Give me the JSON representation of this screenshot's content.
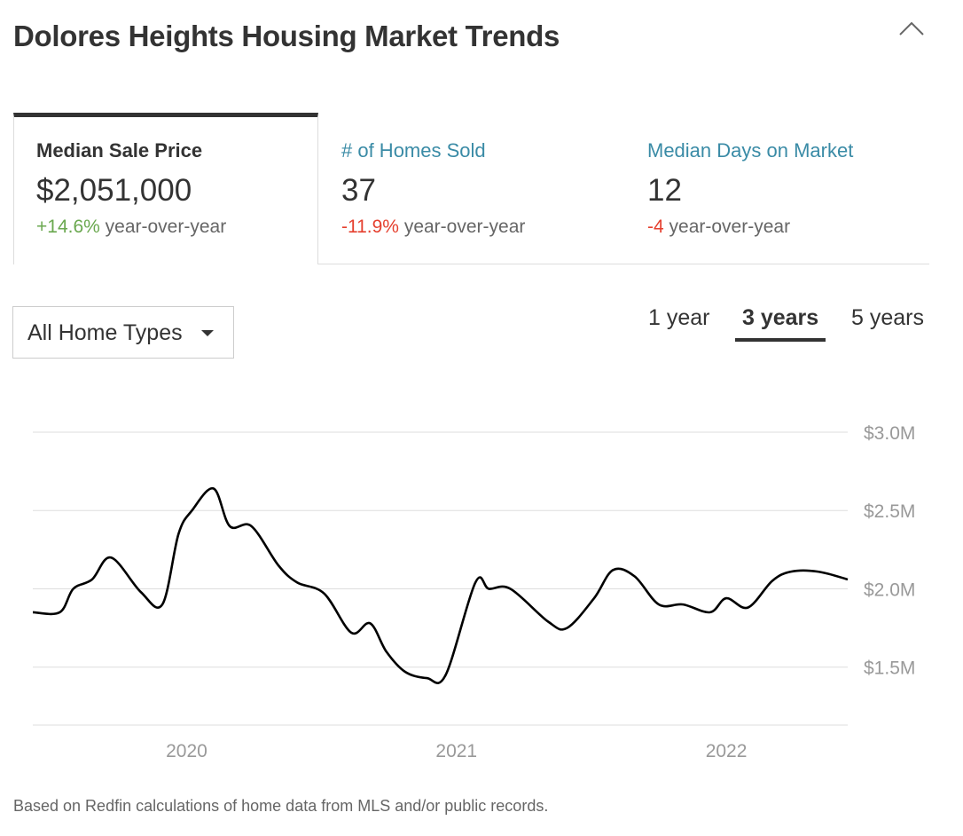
{
  "header": {
    "title": "Dolores Heights Housing Market Trends",
    "collapse_icon": "chevron-up-icon"
  },
  "stats": [
    {
      "label": "Median Sale Price",
      "value": "$2,051,000",
      "change": "+14.6%",
      "change_suffix": " year-over-year",
      "trend": "positive",
      "active": true
    },
    {
      "label": "# of Homes Sold",
      "value": "37",
      "change": "-11.9%",
      "change_suffix": " year-over-year",
      "trend": "negative",
      "active": false
    },
    {
      "label": "Median Days on Market",
      "value": "12",
      "change": "-4",
      "change_suffix": " year-over-year",
      "trend": "negative",
      "active": false
    }
  ],
  "filter": {
    "selected": "All Home Types",
    "icon": "caret-down-icon"
  },
  "range_tabs": [
    {
      "label": "1 year",
      "active": false
    },
    {
      "label": "3 years",
      "active": true
    },
    {
      "label": "5 years",
      "active": false
    }
  ],
  "chart_data": {
    "type": "line",
    "title": "",
    "xlabel": "",
    "ylabel": "",
    "ylim": [
      1.13,
      3.0
    ],
    "xlim": [
      2019.43,
      2022.45
    ],
    "yticks": [
      {
        "value": 1.5,
        "label": "$1.5M"
      },
      {
        "value": 2.0,
        "label": "$2.0M"
      },
      {
        "value": 2.5,
        "label": "$2.5M"
      },
      {
        "value": 3.0,
        "label": "$3.0M"
      }
    ],
    "xticks": [
      {
        "value": 2020.0,
        "label": "2020"
      },
      {
        "value": 2021.0,
        "label": "2021"
      },
      {
        "value": 2022.0,
        "label": "2022"
      }
    ],
    "grid": true,
    "line_color": "#000000",
    "series": [
      {
        "x": [
          2019.43,
          2019.53,
          2019.58,
          2019.65,
          2019.72,
          2019.83,
          2019.91,
          2019.97,
          2020.02,
          2020.1,
          2020.16,
          2020.24,
          2020.34,
          2020.41,
          2020.51,
          2020.61,
          2020.68,
          2020.74,
          2020.81,
          2020.89,
          2020.96,
          2021.07,
          2021.12,
          2021.2,
          2021.34,
          2021.41,
          2021.51,
          2021.58,
          2021.66,
          2021.75,
          2021.84,
          2021.94,
          2022.0,
          2022.08,
          2022.17,
          2022.24,
          2022.34,
          2022.45
        ],
        "y": [
          1.85,
          1.85,
          2.0,
          2.06,
          2.2,
          1.98,
          1.9,
          2.35,
          2.5,
          2.64,
          2.4,
          2.4,
          2.15,
          2.04,
          1.97,
          1.72,
          1.78,
          1.6,
          1.47,
          1.43,
          1.45,
          2.04,
          2.0,
          2.0,
          1.79,
          1.75,
          1.94,
          2.12,
          2.08,
          1.9,
          1.9,
          1.85,
          1.94,
          1.88,
          2.05,
          2.11,
          2.11,
          2.06
        ]
      }
    ]
  },
  "footnote": "Based on Redfin calculations of home data from MLS and/or public records."
}
